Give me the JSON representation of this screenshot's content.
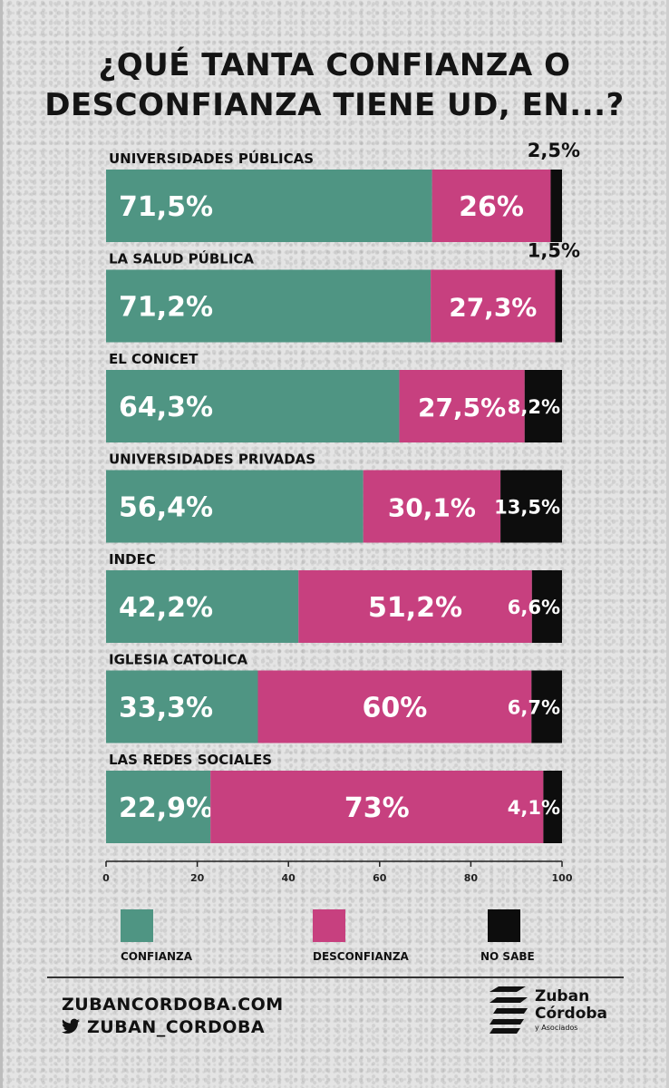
{
  "title": "¿QUÉ TANTA CONFIANZA O DESCONFIANZA TIENE UD, EN...?",
  "colors": {
    "confianza": "#4f9583",
    "desconfianza": "#c7407f",
    "no_sabe": "#0d0d0d"
  },
  "chart_data": {
    "type": "bar",
    "orientation": "horizontal",
    "stacked": true,
    "categories": [
      "UNIVERSIDADES PÚBLICAS",
      "LA SALUD PÚBLICA",
      "EL CONICET",
      "UNIVERSIDADES PRIVADAS",
      "INDEC",
      "IGLESIA CATOLICA",
      "LAS REDES SOCIALES"
    ],
    "series": [
      {
        "name": "CONFIANZA",
        "values": [
          71.5,
          71.2,
          64.3,
          56.4,
          42.2,
          33.3,
          22.9
        ],
        "labels": [
          "71,5%",
          "71,2%",
          "64,3%",
          "56,4%",
          "42,2%",
          "33,3%",
          "22,9%"
        ]
      },
      {
        "name": "DESCONFIANZA",
        "values": [
          26,
          27.3,
          27.5,
          30.1,
          51.2,
          60,
          73
        ],
        "labels": [
          "26%",
          "27,3%",
          "27,5%",
          "30,1%",
          "51,2%",
          "60%",
          "73%"
        ]
      },
      {
        "name": "NO SABE",
        "values": [
          2.5,
          1.5,
          8.2,
          13.5,
          6.6,
          6.7,
          4.1
        ],
        "labels": [
          "2,5%",
          "1,5%",
          "8,2%",
          "13,5%",
          "6,6%",
          "6,7%",
          "4,1%"
        ]
      }
    ],
    "xlim": [
      0,
      100
    ],
    "xticks": [
      "0",
      "20",
      "40",
      "60",
      "80",
      "100"
    ],
    "legend_position": "bottom"
  },
  "legend": {
    "confianza": "CONFIANZA",
    "desconfianza": "DESCONFIANZA",
    "no_sabe": "NO SABE"
  },
  "footer": {
    "website": "ZUBANCORDOBA.COM",
    "twitter": "ZUBAN_CORDOBA",
    "logo_line1": "Zuban",
    "logo_line2": "Córdoba",
    "logo_line3": "y Asociados"
  }
}
